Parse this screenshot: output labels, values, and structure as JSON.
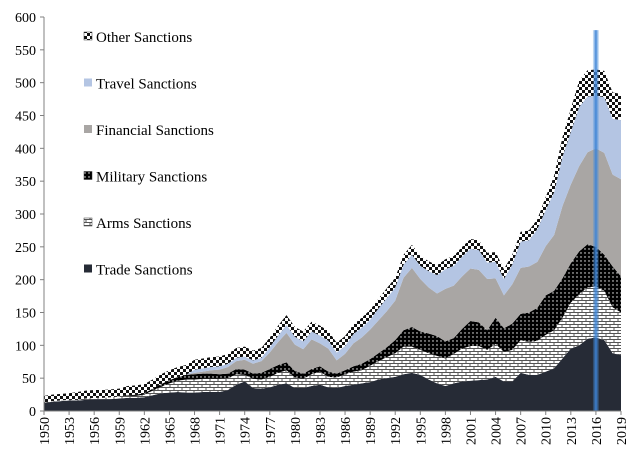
{
  "chart_data": {
    "type": "area",
    "stacked": true,
    "x": [
      1950,
      1951,
      1952,
      1953,
      1954,
      1955,
      1956,
      1957,
      1958,
      1959,
      1960,
      1961,
      1962,
      1963,
      1964,
      1965,
      1966,
      1967,
      1968,
      1969,
      1970,
      1971,
      1972,
      1973,
      1974,
      1975,
      1976,
      1977,
      1978,
      1979,
      1980,
      1981,
      1982,
      1983,
      1984,
      1985,
      1986,
      1987,
      1988,
      1989,
      1990,
      1991,
      1992,
      1993,
      1994,
      1995,
      1996,
      1997,
      1998,
      1999,
      2000,
      2001,
      2002,
      2003,
      2004,
      2005,
      2006,
      2007,
      2008,
      2009,
      2010,
      2011,
      2012,
      2013,
      2014,
      2015,
      2016,
      2017,
      2018,
      2019
    ],
    "x_ticks": [
      1950,
      1953,
      1956,
      1959,
      1962,
      1965,
      1968,
      1971,
      1974,
      1977,
      1980,
      1983,
      1986,
      1989,
      1992,
      1995,
      1998,
      2001,
      2004,
      2007,
      2010,
      2013,
      2016,
      2019
    ],
    "ylim": [
      0,
      600
    ],
    "y_ticks": [
      0,
      50,
      100,
      150,
      200,
      250,
      300,
      350,
      400,
      450,
      500,
      550,
      600
    ],
    "legend_position": "top-left",
    "highlight_year": 2016,
    "series": [
      {
        "name": "Trade Sanctions",
        "color": "#262b36",
        "pattern": "solid",
        "values": [
          12,
          14,
          15,
          16,
          16,
          17,
          18,
          18,
          18,
          19,
          20,
          20,
          21,
          24,
          27,
          28,
          29,
          28,
          28,
          29,
          29,
          29,
          32,
          40,
          45,
          35,
          34,
          36,
          40,
          42,
          35,
          35,
          38,
          40,
          36,
          35,
          38,
          40,
          42,
          44,
          48,
          50,
          52,
          56,
          58,
          55,
          48,
          42,
          38,
          42,
          45,
          46,
          47,
          48,
          52,
          45,
          45,
          58,
          55,
          55,
          60,
          65,
          80,
          95,
          100,
          110,
          112,
          108,
          88,
          85
        ]
      },
      {
        "name": "Arms Sanctions",
        "color": "#ffffff",
        "pattern": "bricks",
        "values": [
          1,
          1,
          1,
          1,
          1,
          2,
          2,
          2,
          3,
          3,
          3,
          3,
          4,
          7,
          10,
          14,
          17,
          20,
          20,
          20,
          20,
          20,
          18,
          16,
          10,
          14,
          14,
          16,
          18,
          20,
          16,
          14,
          18,
          20,
          16,
          16,
          18,
          20,
          20,
          25,
          28,
          32,
          36,
          42,
          40,
          38,
          40,
          42,
          42,
          45,
          50,
          53,
          52,
          45,
          50,
          45,
          48,
          50,
          50,
          52,
          56,
          58,
          62,
          70,
          78,
          78,
          78,
          75,
          70,
          65
        ]
      },
      {
        "name": "Military Sanctions",
        "color": "#000000",
        "pattern": "dots",
        "values": [
          0,
          0,
          0,
          0,
          0,
          0,
          0,
          0,
          0,
          0,
          1,
          2,
          2,
          3,
          4,
          5,
          6,
          7,
          8,
          8,
          8,
          7,
          7,
          8,
          8,
          8,
          10,
          12,
          12,
          12,
          10,
          8,
          8,
          8,
          8,
          6,
          6,
          8,
          10,
          10,
          12,
          15,
          20,
          25,
          30,
          28,
          30,
          30,
          26,
          24,
          30,
          38,
          36,
          30,
          40,
          36,
          40,
          40,
          45,
          50,
          60,
          60,
          60,
          60,
          65,
          66,
          60,
          55,
          62,
          55
        ]
      },
      {
        "name": "Financial Sanctions",
        "color": "#a9a6a4",
        "pattern": "solid",
        "values": [
          0,
          0,
          0,
          0,
          0,
          0,
          0,
          0,
          0,
          0,
          0,
          0,
          0,
          0,
          0,
          0,
          0,
          0,
          2,
          3,
          5,
          7,
          10,
          12,
          15,
          15,
          18,
          25,
          35,
          45,
          40,
          37,
          45,
          35,
          35,
          20,
          25,
          35,
          40,
          45,
          50,
          55,
          60,
          80,
          90,
          80,
          70,
          65,
          80,
          80,
          80,
          80,
          80,
          78,
          60,
          50,
          60,
          70,
          70,
          70,
          75,
          85,
          110,
          120,
          130,
          140,
          150,
          155,
          140,
          148
        ]
      },
      {
        "name": "Travel Sanctions",
        "color": "#b4c5e3",
        "pattern": "solid",
        "values": [
          0,
          0,
          0,
          0,
          0,
          0,
          0,
          0,
          0,
          0,
          0,
          0,
          0,
          0,
          0,
          0,
          0,
          0,
          5,
          5,
          5,
          5,
          5,
          5,
          5,
          5,
          5,
          8,
          10,
          12,
          12,
          12,
          12,
          12,
          12,
          12,
          12,
          14,
          15,
          15,
          18,
          20,
          20,
          20,
          20,
          20,
          25,
          28,
          30,
          30,
          30,
          30,
          30,
          25,
          25,
          25,
          30,
          40,
          40,
          50,
          55,
          65,
          75,
          80,
          90,
          85,
          80,
          85,
          85,
          90
        ]
      },
      {
        "name": "Other Sanctions",
        "color": "#ffffff",
        "pattern": "checker",
        "values": [
          10,
          10,
          10,
          10,
          12,
          12,
          12,
          12,
          12,
          12,
          14,
          14,
          14,
          14,
          15,
          15,
          15,
          15,
          15,
          15,
          15,
          15,
          15,
          15,
          15,
          15,
          15,
          15,
          15,
          15,
          15,
          15,
          15,
          15,
          15,
          15,
          15,
          15,
          15,
          15,
          15,
          15,
          15,
          15,
          15,
          15,
          15,
          15,
          15,
          15,
          15,
          15,
          15,
          15,
          15,
          15,
          15,
          15,
          15,
          15,
          20,
          25,
          30,
          35,
          40,
          40,
          40,
          40,
          40,
          40
        ]
      }
    ]
  }
}
